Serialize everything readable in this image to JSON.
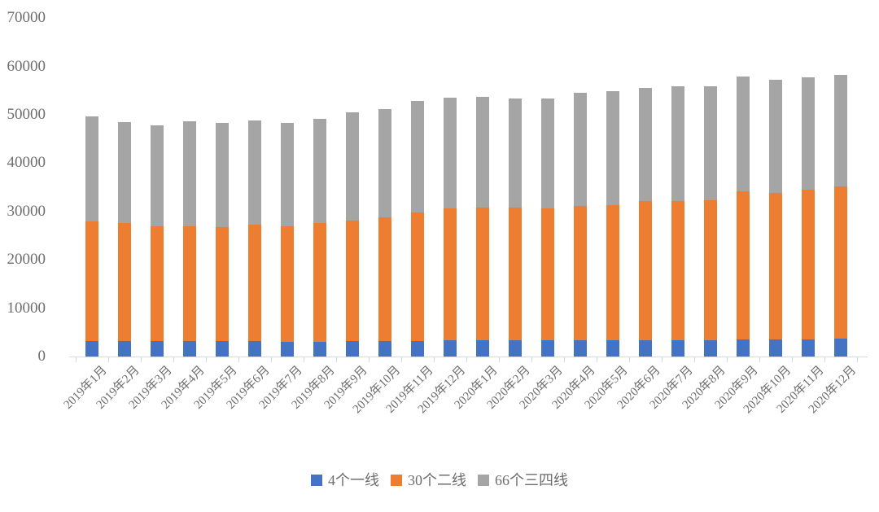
{
  "chart_data": {
    "type": "bar",
    "stacked": true,
    "title": "",
    "xlabel": "",
    "ylabel": "",
    "ylim": [
      0,
      70000
    ],
    "ytick_interval": 10000,
    "ytick_labels": [
      "0",
      "10000",
      "20000",
      "30000",
      "40000",
      "50000",
      "60000",
      "70000"
    ],
    "grid": false,
    "legend_position": "bottom-center",
    "categories": [
      "2019年1月",
      "2019年2月",
      "2019年3月",
      "2019年4月",
      "2019年5月",
      "2019年6月",
      "2019年7月",
      "2019年8月",
      "2019年9月",
      "2019年10月",
      "2019年11月",
      "2019年12月",
      "2020年1月",
      "2020年2月",
      "2020年3月",
      "2020年4月",
      "2020年5月",
      "2020年6月",
      "2020年7月",
      "2020年8月",
      "2020年9月",
      "2020年10月",
      "2020年11月",
      "2020年12月"
    ],
    "series": [
      {
        "name": "4个一线",
        "color": "#4472C4",
        "values": [
          3200,
          3150,
          3200,
          3200,
          3150,
          3150,
          3050,
          3050,
          3150,
          3150,
          3250,
          3300,
          3300,
          3300,
          3400,
          3400,
          3400,
          3400,
          3400,
          3400,
          3600,
          3600,
          3550,
          3750
        ]
      },
      {
        "name": "30个二线",
        "color": "#ED7D31",
        "values": [
          24800,
          24550,
          23800,
          23800,
          23600,
          24150,
          23950,
          24550,
          24900,
          25600,
          26550,
          27400,
          27450,
          27450,
          27250,
          27750,
          28000,
          28700,
          28700,
          29000,
          30600,
          30250,
          30900,
          31450
        ]
      },
      {
        "name": "66个三四线",
        "color": "#A5A5A5",
        "values": [
          21600,
          20850,
          20850,
          21600,
          21650,
          21500,
          21400,
          21500,
          22450,
          22450,
          23000,
          22900,
          22950,
          22650,
          22750,
          23350,
          23550,
          23450,
          23750,
          23500,
          23700,
          23350,
          23350,
          23100
        ]
      }
    ],
    "stack_totals": [
      49600,
      48550,
      47850,
      48600,
      48400,
      48800,
      48400,
      49100,
      50500,
      51200,
      52800,
      53600,
      53700,
      53400,
      53400,
      54500,
      54950,
      55550,
      55850,
      55900,
      57900,
      57200,
      57800,
      58300
    ]
  },
  "colors": {
    "axis_text": "#6e6e6e",
    "axis_line": "#d9d9d9",
    "background": "#ffffff"
  }
}
